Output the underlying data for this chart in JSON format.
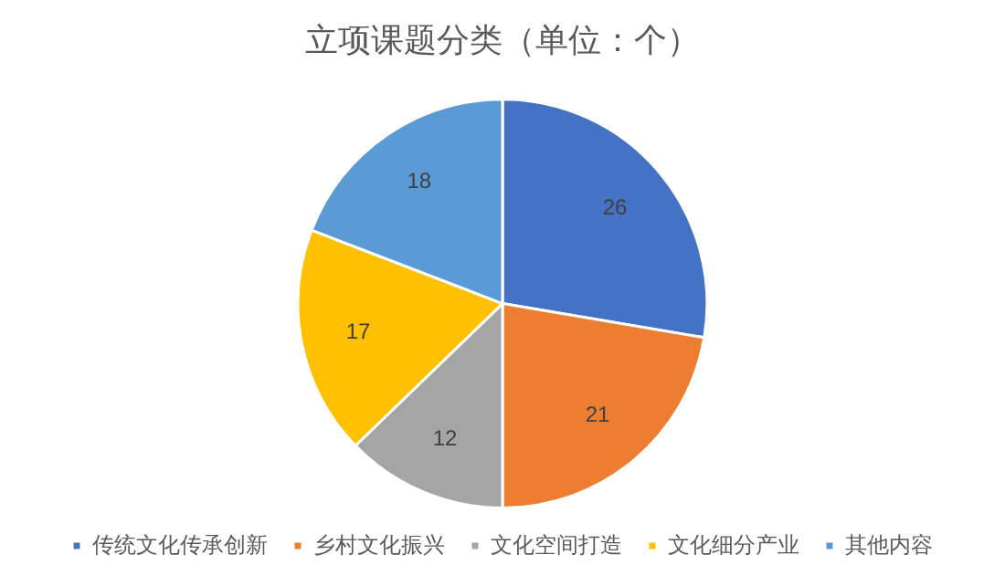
{
  "chart_data": {
    "type": "pie",
    "title": "立项课题分类（单位：个）",
    "categories": [
      "传统文化传承创新",
      "乡村文化振兴",
      "文化空间打造",
      "文化细分产业",
      "其他内容"
    ],
    "values": [
      26,
      21,
      12,
      17,
      18
    ],
    "colors": [
      "#4472c4",
      "#ed7d31",
      "#a5a5a5",
      "#ffc000",
      "#5b9bd5"
    ],
    "data_labels": true,
    "legend": "bottom"
  }
}
